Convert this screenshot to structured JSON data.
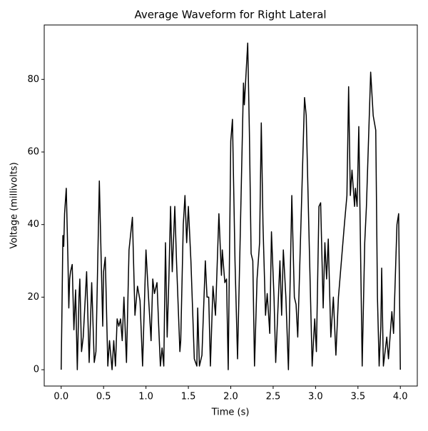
{
  "chart_data": {
    "type": "line",
    "title": "Average Waveform for Right Lateral",
    "x_label": "Time (s)",
    "y_label": "Voltage (millivolts)",
    "xlim": [
      -0.2,
      4.2
    ],
    "ylim": [
      -4.5,
      95
    ],
    "xticks": [
      {
        "value": 0,
        "label": "0.0"
      },
      0.5,
      {
        "value": 1,
        "label": "1.0"
      },
      1.5,
      {
        "value": 2,
        "label": "2.0"
      },
      2.5,
      {
        "value": 3,
        "label": "3.0"
      },
      3.5,
      {
        "value": 4,
        "label": "4.0"
      }
    ],
    "yticks": [
      0,
      20,
      40,
      60,
      80
    ],
    "grid": false,
    "series": [
      {
        "color": "#000000",
        "x": [
          0,
          0.01,
          0.02,
          0.03,
          0.04,
          0.06,
          0.08,
          0.09,
          0.1,
          0.11,
          0.13,
          0.15,
          0.17,
          0.19,
          0.21,
          0.22,
          0.24,
          0.26,
          0.3,
          0.33,
          0.36,
          0.39,
          0.41,
          0.45,
          0.49,
          0.5,
          0.52,
          0.55,
          0.57,
          0.6,
          0.62,
          0.64,
          0.66,
          0.68,
          0.7,
          0.72,
          0.74,
          0.77,
          0.8,
          0.84,
          0.87,
          0.9,
          0.93,
          0.96,
          1.0,
          1.03,
          1.06,
          1.08,
          1.1,
          1.13,
          1.15,
          1.17,
          1.19,
          1.21,
          1.23,
          1.25,
          1.27,
          1.29,
          1.31,
          1.34,
          1.36,
          1.4,
          1.41,
          1.44,
          1.46,
          1.48,
          1.5,
          1.53,
          1.57,
          1.6,
          1.61,
          1.63,
          1.66,
          1.7,
          1.72,
          1.74,
          1.76,
          1.79,
          1.82,
          1.86,
          1.89,
          1.9,
          1.93,
          1.95,
          1.97,
          2.0,
          2.02,
          2.05,
          2.08,
          2.11,
          2.15,
          2.16,
          2.2,
          2.22,
          2.24,
          2.26,
          2.28,
          2.31,
          2.34,
          2.36,
          2.38,
          2.41,
          2.43,
          2.46,
          2.48,
          2.51,
          2.53,
          2.58,
          2.6,
          2.62,
          2.65,
          2.68,
          2.72,
          2.75,
          2.77,
          2.79,
          2.87,
          2.89,
          2.92,
          2.96,
          2.99,
          3.01,
          3.04,
          3.06,
          3.09,
          3.11,
          3.13,
          3.15,
          3.18,
          3.21,
          3.24,
          3.27,
          3.34,
          3.37,
          3.39,
          3.41,
          3.43,
          3.46,
          3.47,
          3.49,
          3.51,
          3.55,
          3.58,
          3.6,
          3.65,
          3.68,
          3.71,
          3.73,
          3.75,
          3.77,
          3.78,
          3.8,
          3.84,
          3.86,
          3.9,
          3.92,
          3.96,
          3.98,
          4.0
        ],
        "values": [
          0,
          18,
          37,
          34,
          43,
          50,
          30,
          17,
          25,
          27,
          29,
          11,
          22,
          0,
          20,
          25,
          5,
          9,
          27,
          2,
          24,
          2,
          5,
          52,
          12,
          27,
          31,
          1,
          8,
          0,
          8,
          1,
          14,
          12,
          14,
          8,
          20,
          2,
          33,
          42,
          15,
          23,
          19,
          1,
          33,
          20,
          8,
          25,
          21,
          24,
          12,
          1,
          6,
          1,
          35,
          9,
          25,
          45,
          27,
          45,
          30,
          5,
          8,
          40,
          48,
          35,
          45,
          30,
          3,
          1,
          17,
          1,
          4,
          30,
          20,
          20,
          1,
          23,
          15,
          43,
          26,
          33,
          24,
          25,
          0,
          63,
          69,
          30,
          3,
          35,
          79,
          73,
          90,
          65,
          32,
          30,
          1,
          25,
          35,
          68,
          40,
          15,
          21,
          10,
          38,
          20,
          2,
          30,
          15,
          33,
          20,
          0,
          48,
          20,
          18,
          9,
          75,
          70,
          40,
          1,
          14,
          5,
          45,
          46,
          17,
          35,
          25,
          36,
          9,
          20,
          4,
          20,
          40,
          48,
          78,
          48,
          55,
          45,
          50,
          45,
          67,
          1,
          35,
          45,
          82,
          70,
          66,
          20,
          1,
          12,
          28,
          1,
          9,
          3,
          16,
          10,
          40,
          43,
          0
        ]
      }
    ]
  }
}
